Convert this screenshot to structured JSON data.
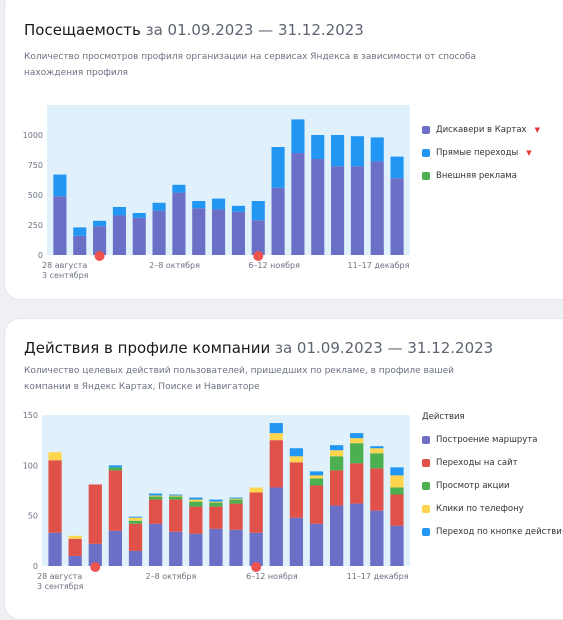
{
  "card1": {
    "title": "Посещаемость",
    "dates": "за 01.09.2023 — 31.12.2023",
    "subtitle": "Количество просмотров профиля организации на сервисах Яндекса в зависимости от способа нахождения профиля",
    "legend": [
      {
        "label": "Дискавери в Картах",
        "color": "#6c6fc6",
        "arrow": true
      },
      {
        "label": "Прямые переходы",
        "color": "#2196f3",
        "arrow": true
      },
      {
        "label": "Внешняя реклама",
        "color": "#4caf50",
        "arrow": false
      }
    ]
  },
  "card2": {
    "title": "Действия в профиле компании",
    "dates": "за 01.09.2023 — 31.12.2023",
    "subtitle": "Количество целевых действий пользователей, пришедших по рекламе, в профиле вашей компании в Яндекс Картах, Поиске и Навигаторе",
    "legend_title": "Действия",
    "legend": [
      {
        "label": "Построение маршрута",
        "color": "#6c6fc6"
      },
      {
        "label": "Переходы на сайт",
        "color": "#e0514a"
      },
      {
        "label": "Просмотр акции",
        "color": "#4caf50"
      },
      {
        "label": "Клики по телефону",
        "color": "#ffd54f"
      },
      {
        "label": "Переход по кнопке действия",
        "color": "#2196f3"
      }
    ]
  },
  "chart_data": [
    {
      "type": "bar",
      "stacked": true,
      "ylim": [
        0,
        1250
      ],
      "yticks": [
        0,
        250,
        500,
        750,
        1000
      ],
      "grid": false,
      "xtick_labels": [
        {
          "index": 0,
          "text": "28 августа"
        },
        {
          "index": 0,
          "text": "3 сентября"
        },
        {
          "index": 5,
          "text": "2–8 октября"
        },
        {
          "index": 10,
          "text": "6–12 ноября"
        },
        {
          "index": 15,
          "text": "11–17 декабря"
        }
      ],
      "series": [
        {
          "name": "Дискавери в Картах",
          "color": "#6c6fc6",
          "values": [
            490,
            160,
            240,
            330,
            310,
            370,
            520,
            390,
            380,
            360,
            290,
            560,
            850,
            800,
            740,
            740,
            780,
            640
          ]
        },
        {
          "name": "Прямые переходы",
          "color": "#2196f3",
          "values": [
            180,
            70,
            45,
            70,
            40,
            65,
            65,
            60,
            90,
            50,
            160,
            340,
            280,
            200,
            260,
            250,
            200,
            180
          ]
        },
        {
          "name": "Внешняя реклама",
          "color": "#4caf50",
          "values": [
            0,
            0,
            0,
            0,
            0,
            0,
            0,
            0,
            0,
            0,
            0,
            0,
            0,
            0,
            0,
            0,
            0,
            0
          ]
        }
      ],
      "markers": [
        2,
        10
      ]
    },
    {
      "type": "bar",
      "stacked": true,
      "ylim": [
        0,
        150
      ],
      "yticks": [
        0,
        50,
        100,
        150
      ],
      "grid": false,
      "xtick_labels": [
        {
          "index": 0,
          "text": "28 августа"
        },
        {
          "index": 0,
          "text": "3 сентября"
        },
        {
          "index": 5,
          "text": "2–8 октября"
        },
        {
          "index": 10,
          "text": "6–12 ноября"
        },
        {
          "index": 15,
          "text": "11–17 декабря"
        }
      ],
      "series": [
        {
          "name": "Построение маршрута",
          "color": "#6c6fc6",
          "values": [
            33,
            10,
            22,
            35,
            15,
            42,
            34,
            32,
            37,
            36,
            33,
            78,
            48,
            42,
            60,
            62,
            55,
            40
          ]
        },
        {
          "name": "Переходы на сайт",
          "color": "#e0514a",
          "values": [
            72,
            17,
            59,
            60,
            27,
            24,
            32,
            27,
            22,
            26,
            40,
            47,
            55,
            38,
            35,
            40,
            42,
            31
          ]
        },
        {
          "name": "Просмотр акции",
          "color": "#4caf50",
          "values": [
            0,
            0,
            0,
            3,
            3,
            3,
            3,
            5,
            4,
            4,
            0,
            0,
            0,
            7,
            14,
            20,
            15,
            7
          ]
        },
        {
          "name": "Клики по телефону",
          "color": "#ffd54f",
          "values": [
            8,
            3,
            0,
            0,
            3,
            1,
            1,
            2,
            1,
            1,
            5,
            7,
            6,
            3,
            6,
            5,
            5,
            12
          ]
        },
        {
          "name": "Переход по кнопке действия",
          "color": "#2196f3",
          "values": [
            0,
            0,
            0,
            2,
            1,
            2,
            1,
            2,
            2,
            1,
            0,
            10,
            8,
            4,
            5,
            5,
            2,
            8
          ]
        }
      ],
      "markers": [
        2,
        10
      ]
    }
  ]
}
